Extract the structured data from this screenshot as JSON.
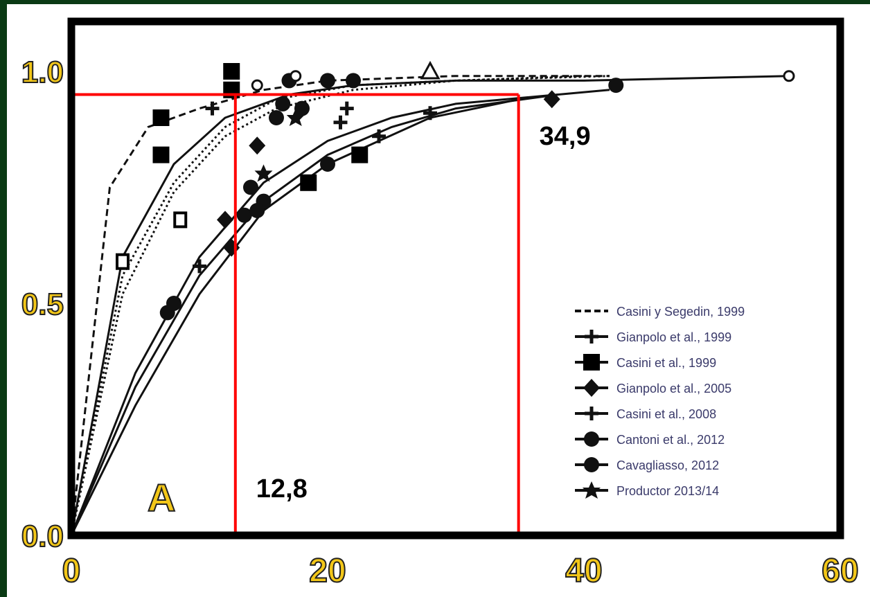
{
  "colors": {
    "frame_background": "#0a3a14",
    "reference_lines": "#ff0000",
    "tick_label_fill": "#f3c718",
    "tick_label_stroke": "#222222",
    "curves": "#111111"
  },
  "chart_data": {
    "type": "line",
    "xlim": [
      0,
      60
    ],
    "ylim": [
      0,
      1.0
    ],
    "x_ticks": [
      "0",
      "20",
      "40",
      "60"
    ],
    "y_ticks": [
      "0.0",
      "0.5",
      "1.0"
    ],
    "panel_label": "A",
    "grid": false,
    "legend_position": "bottom-right",
    "legend": [
      {
        "label": "Casini y Segedin, 1999",
        "marker": "none",
        "dash": "dash"
      },
      {
        "label": "Gianpolo et al., 1999",
        "marker": "cross",
        "dash": "solid"
      },
      {
        "label": "Casini et al., 1999",
        "marker": "square",
        "dash": "solid"
      },
      {
        "label": "Gianpolo et al., 2005",
        "marker": "diamond",
        "dash": "solid"
      },
      {
        "label": "Casini et al., 2008",
        "marker": "cross",
        "dash": "solid"
      },
      {
        "label": "Cantoni et al., 2012",
        "marker": "circle",
        "dash": "solid"
      },
      {
        "label": "Cavagliasso, 2012",
        "marker": "circle",
        "dash": "solid"
      },
      {
        "label": "Productor 2013/14",
        "marker": "star",
        "dash": "solid"
      }
    ],
    "series": [
      {
        "dash": "dash",
        "x": [
          0,
          3,
          6,
          10,
          15,
          20,
          30,
          40,
          42
        ],
        "y": [
          0,
          0.75,
          0.88,
          0.92,
          0.96,
          0.98,
          0.99,
          0.99,
          0.99
        ]
      },
      {
        "dash": "solid",
        "x": [
          0,
          4,
          8,
          12,
          17,
          22,
          30,
          40,
          56
        ],
        "y": [
          0,
          0.6,
          0.8,
          0.9,
          0.95,
          0.97,
          0.98,
          0.98,
          0.99
        ]
      },
      {
        "dash": "dot",
        "x": [
          0,
          4,
          8,
          12,
          16,
          22,
          30,
          40
        ],
        "y": [
          0,
          0.56,
          0.76,
          0.88,
          0.94,
          0.97,
          0.98,
          0.99
        ]
      },
      {
        "dash": "dot",
        "x": [
          0,
          4,
          8,
          12,
          16,
          22,
          30,
          42
        ],
        "y": [
          0,
          0.52,
          0.74,
          0.86,
          0.92,
          0.96,
          0.98,
          0.99
        ]
      },
      {
        "dash": "solid",
        "x": [
          0,
          5,
          10,
          15,
          20,
          25,
          30,
          38,
          42
        ],
        "y": [
          0,
          0.35,
          0.6,
          0.76,
          0.85,
          0.9,
          0.93,
          0.95,
          0.96
        ]
      },
      {
        "dash": "solid",
        "x": [
          0,
          5,
          10,
          15,
          20,
          25,
          30,
          38
        ],
        "y": [
          0,
          0.32,
          0.56,
          0.72,
          0.82,
          0.88,
          0.92,
          0.95
        ]
      },
      {
        "dash": "solid",
        "x": [
          0,
          5,
          10,
          15,
          20,
          24,
          28,
          35
        ],
        "y": [
          0,
          0.28,
          0.52,
          0.7,
          0.8,
          0.85,
          0.9,
          0.94
        ]
      }
    ],
    "points": [
      {
        "marker": "square",
        "x": 12.5,
        "y": 1.0
      },
      {
        "marker": "square",
        "x": 12.5,
        "y": 0.96
      },
      {
        "marker": "square",
        "x": 7,
        "y": 0.9
      },
      {
        "marker": "square",
        "x": 7,
        "y": 0.82
      },
      {
        "marker": "square",
        "x": 22.5,
        "y": 0.82
      },
      {
        "marker": "square",
        "x": 18.5,
        "y": 0.76
      },
      {
        "marker": "square-open",
        "x": 8.5,
        "y": 0.68
      },
      {
        "marker": "square-open",
        "x": 4,
        "y": 0.59
      },
      {
        "marker": "circle",
        "x": 14,
        "y": 0.75
      },
      {
        "marker": "circle",
        "x": 15,
        "y": 0.72
      },
      {
        "marker": "circle",
        "x": 13.5,
        "y": 0.69
      },
      {
        "marker": "circle",
        "x": 14.5,
        "y": 0.7
      },
      {
        "marker": "circle",
        "x": 7.5,
        "y": 0.48
      },
      {
        "marker": "circle",
        "x": 8,
        "y": 0.5
      },
      {
        "marker": "circle",
        "x": 16,
        "y": 0.9
      },
      {
        "marker": "circle",
        "x": 18,
        "y": 0.92
      },
      {
        "marker": "circle",
        "x": 16.5,
        "y": 0.93
      },
      {
        "marker": "circle",
        "x": 20,
        "y": 0.8
      },
      {
        "marker": "circle",
        "x": 17,
        "y": 0.98
      },
      {
        "marker": "circle",
        "x": 20,
        "y": 0.98
      },
      {
        "marker": "circle",
        "x": 22,
        "y": 0.98
      },
      {
        "marker": "circle",
        "x": 42.5,
        "y": 0.97
      },
      {
        "marker": "diamond",
        "x": 37.5,
        "y": 0.94
      },
      {
        "marker": "diamond",
        "x": 14.5,
        "y": 0.84
      },
      {
        "marker": "diamond",
        "x": 12.5,
        "y": 0.62
      },
      {
        "marker": "diamond",
        "x": 12,
        "y": 0.68
      },
      {
        "marker": "cross",
        "x": 21,
        "y": 0.89
      },
      {
        "marker": "cross",
        "x": 24,
        "y": 0.86
      },
      {
        "marker": "cross",
        "x": 11,
        "y": 0.92
      },
      {
        "marker": "cross",
        "x": 21.5,
        "y": 0.92
      },
      {
        "marker": "cross",
        "x": 28,
        "y": 0.91
      },
      {
        "marker": "cross",
        "x": 10,
        "y": 0.58
      },
      {
        "marker": "star",
        "x": 15,
        "y": 0.78
      },
      {
        "marker": "star",
        "x": 17.5,
        "y": 0.9
      },
      {
        "marker": "open-circle",
        "x": 14.5,
        "y": 0.97
      },
      {
        "marker": "open-circle",
        "x": 56,
        "y": 0.99
      },
      {
        "marker": "open-circle",
        "x": 17.5,
        "y": 0.99
      },
      {
        "marker": "triangle",
        "x": 28,
        "y": 1.0
      }
    ],
    "reference_lines": {
      "horizontal_y": 0.95,
      "vertical_x": [
        12.8,
        34.9
      ]
    },
    "annotations": [
      {
        "text": "12,8",
        "x": 12.8,
        "y": 0.1
      },
      {
        "text": "34,9",
        "x": 34.9,
        "y": 0.86
      }
    ]
  }
}
